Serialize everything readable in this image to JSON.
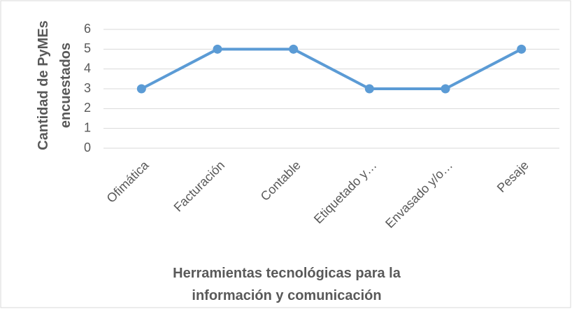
{
  "chart_data": {
    "type": "line",
    "categories": [
      "Ofimática",
      "Facturación",
      "Contable",
      "Etiquetado y…",
      "Envasado y/o…",
      "Pesaje"
    ],
    "series": [
      {
        "name": "Cantidad de PyMEs encuestados",
        "color": "#5b9bd5",
        "values": [
          3,
          5,
          5,
          3,
          3,
          5
        ]
      }
    ],
    "ylim": [
      0,
      6
    ],
    "yticks": [
      0,
      1,
      2,
      3,
      4,
      5,
      6
    ],
    "grid": true,
    "y_label": "Cantidad de PyMEs encuestados",
    "x_label": "Herramientas tecnológicas para la información y comunicación"
  }
}
